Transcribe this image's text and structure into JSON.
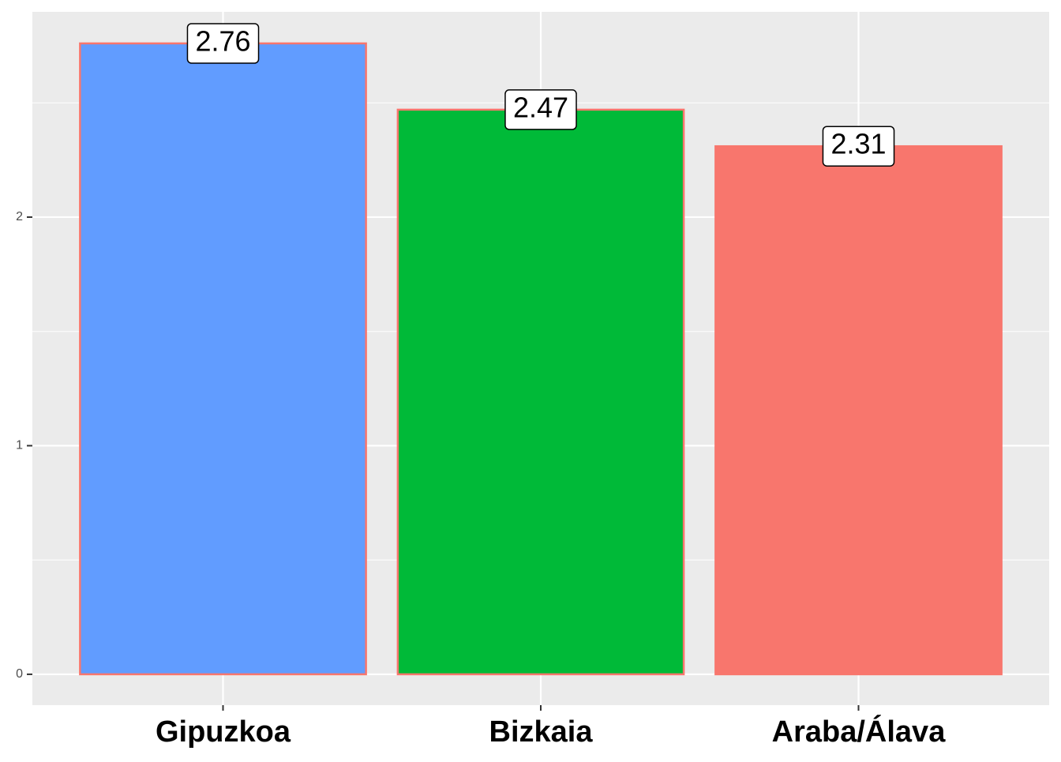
{
  "chart_data": {
    "type": "bar",
    "categories": [
      "Gipuzkoa",
      "Bizkaia",
      "Araba/Álava"
    ],
    "values": [
      2.76,
      2.47,
      2.31
    ],
    "colors": [
      "#619CFF",
      "#00BA38",
      "#F8766D"
    ],
    "outline_color": "#F8766D",
    "ylim": [
      -0.135,
      2.898
    ],
    "yticks": [
      0,
      1,
      2
    ],
    "minor_gridlines": [
      0.5,
      1.5,
      2.5
    ],
    "grid": true
  }
}
